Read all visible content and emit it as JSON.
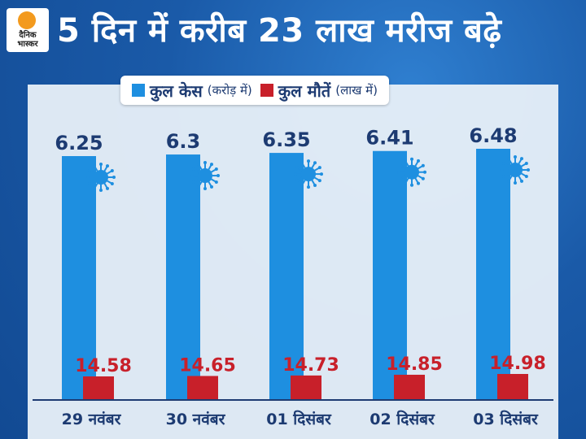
{
  "header": {
    "title": "5 दिन में करीब 23 लाख मरीज बढ़े",
    "logo_text": "दैनिक भास्कर"
  },
  "legend": {
    "cases_label": "कुल केस",
    "cases_unit": "(करोड़ में)",
    "deaths_label": "कुल मौतें",
    "deaths_unit": "(लाख में)"
  },
  "colors": {
    "cases": "#1e8fe0",
    "deaths": "#c8202a",
    "label_text": "#1d3b72"
  },
  "chart_data": {
    "type": "bar",
    "categories": [
      "29 नवंबर",
      "30 नवंबर",
      "01 दिसंबर",
      "02 दिसंबर",
      "03 दिसंबर"
    ],
    "series": [
      {
        "name": "कुल केस (करोड़ में)",
        "values": [
          6.25,
          6.3,
          6.35,
          6.41,
          6.48
        ]
      },
      {
        "name": "कुल मौतें (लाख में)",
        "values": [
          14.58,
          14.65,
          14.73,
          14.85,
          14.98
        ]
      }
    ],
    "value_labels": {
      "cases": [
        "6.25",
        "6.3",
        "6.35",
        "6.41",
        "6.48"
      ],
      "deaths": [
        "14.58",
        "14.65",
        "14.73",
        "14.85",
        "14.98"
      ]
    },
    "title": "5 दिन में करीब 23 लाख मरीज बढ़े",
    "legend_position": "top",
    "grid": false
  }
}
